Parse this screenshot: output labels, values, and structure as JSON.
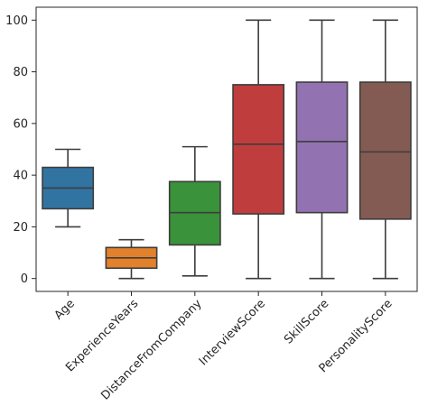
{
  "chart_data": {
    "type": "box",
    "title": "",
    "xlabel": "",
    "ylabel": "",
    "ylim": [
      -5,
      105
    ],
    "y_ticks": [
      0,
      20,
      40,
      60,
      80,
      100
    ],
    "grid": false,
    "categories": [
      "Age",
      "ExperienceYears",
      "DistanceFromCompany",
      "InterviewScore",
      "SkillScore",
      "PersonalityScore"
    ],
    "boxes": [
      {
        "name": "Age",
        "color": "#3274a1",
        "whisker_low": 20,
        "q1": 27,
        "median": 35,
        "q3": 43,
        "whisker_high": 50
      },
      {
        "name": "ExperienceYears",
        "color": "#e1812c",
        "whisker_low": 0,
        "q1": 4,
        "median": 8,
        "q3": 12,
        "whisker_high": 15
      },
      {
        "name": "DistanceFromCompany",
        "color": "#3a923a",
        "whisker_low": 1,
        "q1": 13,
        "median": 25.5,
        "q3": 37.5,
        "whisker_high": 51
      },
      {
        "name": "InterviewScore",
        "color": "#c03d3e",
        "whisker_low": 0,
        "q1": 25,
        "median": 52,
        "q3": 75,
        "whisker_high": 100
      },
      {
        "name": "SkillScore",
        "color": "#9372b2",
        "whisker_low": 0,
        "q1": 25.5,
        "median": 53,
        "q3": 76,
        "whisker_high": 100
      },
      {
        "name": "PersonalityScore",
        "color": "#845b53",
        "whisker_low": 0,
        "q1": 23,
        "median": 49,
        "q3": 76,
        "whisker_high": 100
      }
    ]
  }
}
